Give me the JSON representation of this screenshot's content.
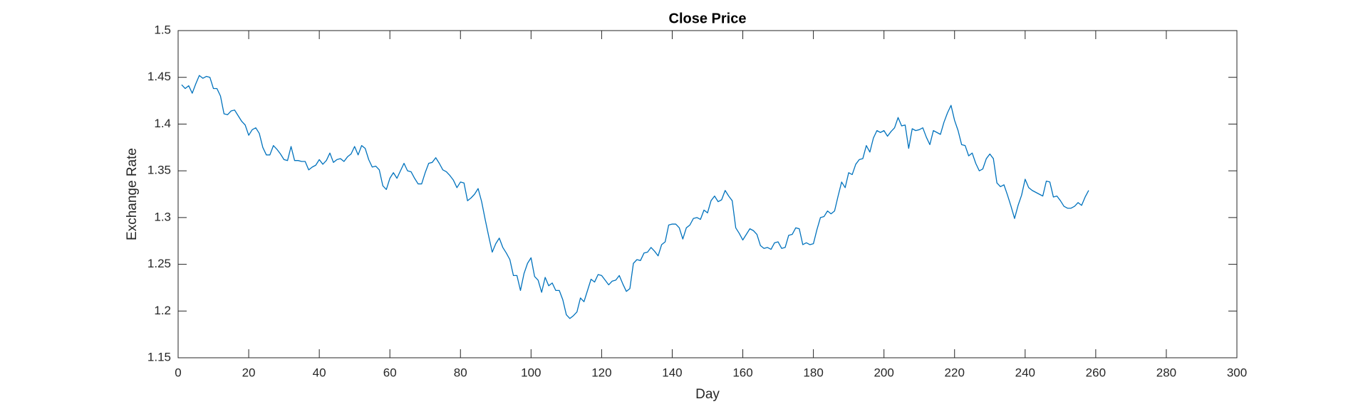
{
  "chart_data": {
    "type": "line",
    "title": "Close Price",
    "x_label": "Day",
    "y_label": "Exchange Rate",
    "x": [
      1,
      2,
      3,
      4,
      5,
      6,
      7,
      8,
      9,
      10,
      11,
      12,
      13,
      14,
      15,
      16,
      17,
      18,
      19,
      20,
      21,
      22,
      23,
      24,
      25,
      26,
      27,
      28,
      29,
      30,
      31,
      32,
      33,
      34,
      35,
      36,
      37,
      38,
      39,
      40,
      41,
      42,
      43,
      44,
      45,
      46,
      47,
      48,
      49,
      50,
      51,
      52,
      53,
      54,
      55,
      56,
      57,
      58,
      59,
      60,
      61,
      62,
      63,
      64,
      65,
      66,
      67,
      68,
      69,
      70,
      71,
      72,
      73,
      74,
      75,
      76,
      77,
      78,
      79,
      80,
      81,
      82,
      83,
      84,
      85,
      86,
      87,
      88,
      89,
      90,
      91,
      92,
      93,
      94,
      95,
      96,
      97,
      98,
      99,
      100,
      101,
      102,
      103,
      104,
      105,
      106,
      107,
      108,
      109,
      110,
      111,
      112,
      113,
      114,
      115,
      116,
      117,
      118,
      119,
      120,
      121,
      122,
      123,
      124,
      125,
      126,
      127,
      128,
      129,
      130,
      131,
      132,
      133,
      134,
      135,
      136,
      137,
      138,
      139,
      140,
      141,
      142,
      143,
      144,
      145,
      146,
      147,
      148,
      149,
      150,
      151,
      152,
      153,
      154,
      155,
      156,
      157,
      158,
      159,
      160,
      161,
      162,
      163,
      164,
      165,
      166,
      167,
      168,
      169,
      170,
      171,
      172,
      173,
      174,
      175,
      176,
      177,
      178,
      179,
      180,
      181,
      182,
      183,
      184,
      185,
      186,
      187,
      188,
      189,
      190,
      191,
      192,
      193,
      194,
      195,
      196,
      197,
      198,
      199,
      200,
      201,
      202,
      203,
      204,
      205,
      206,
      207,
      208,
      209,
      210,
      211,
      212,
      213,
      214,
      215,
      216,
      217,
      218,
      219,
      220,
      221,
      222,
      223,
      224,
      225,
      226,
      227,
      228,
      229,
      230,
      231,
      232,
      233,
      234,
      235,
      236,
      237,
      238,
      239,
      240,
      241,
      242,
      243,
      244,
      245,
      246,
      247,
      248,
      249,
      250,
      251,
      252,
      253,
      254,
      255,
      256,
      257,
      258
    ],
    "series": [
      {
        "name": "Close Price",
        "color": "#0072bd",
        "values": [
          1.442,
          1.438,
          1.441,
          1.433,
          1.443,
          1.452,
          1.449,
          1.451,
          1.45,
          1.438,
          1.438,
          1.43,
          1.411,
          1.41,
          1.414,
          1.415,
          1.409,
          1.403,
          1.399,
          1.388,
          1.394,
          1.396,
          1.39,
          1.375,
          1.367,
          1.367,
          1.377,
          1.373,
          1.368,
          1.362,
          1.361,
          1.376,
          1.361,
          1.361,
          1.36,
          1.36,
          1.351,
          1.354,
          1.356,
          1.362,
          1.357,
          1.361,
          1.369,
          1.359,
          1.362,
          1.363,
          1.36,
          1.365,
          1.368,
          1.376,
          1.367,
          1.377,
          1.374,
          1.362,
          1.354,
          1.355,
          1.351,
          1.334,
          1.33,
          1.342,
          1.348,
          1.342,
          1.35,
          1.358,
          1.35,
          1.349,
          1.342,
          1.336,
          1.336,
          1.348,
          1.358,
          1.359,
          1.364,
          1.358,
          1.351,
          1.349,
          1.345,
          1.34,
          1.332,
          1.338,
          1.337,
          1.318,
          1.321,
          1.325,
          1.331,
          1.317,
          1.298,
          1.28,
          1.263,
          1.272,
          1.278,
          1.268,
          1.262,
          1.255,
          1.238,
          1.238,
          1.222,
          1.24,
          1.251,
          1.257,
          1.237,
          1.233,
          1.22,
          1.236,
          1.227,
          1.23,
          1.222,
          1.222,
          1.212,
          1.196,
          1.192,
          1.195,
          1.199,
          1.214,
          1.21,
          1.222,
          1.234,
          1.231,
          1.239,
          1.238,
          1.233,
          1.228,
          1.232,
          1.233,
          1.238,
          1.229,
          1.221,
          1.224,
          1.251,
          1.255,
          1.254,
          1.262,
          1.263,
          1.268,
          1.264,
          1.259,
          1.271,
          1.274,
          1.292,
          1.293,
          1.293,
          1.289,
          1.277,
          1.289,
          1.292,
          1.299,
          1.3,
          1.298,
          1.308,
          1.305,
          1.318,
          1.323,
          1.317,
          1.319,
          1.329,
          1.323,
          1.318,
          1.289,
          1.283,
          1.276,
          1.282,
          1.288,
          1.286,
          1.282,
          1.27,
          1.267,
          1.268,
          1.266,
          1.273,
          1.274,
          1.267,
          1.268,
          1.281,
          1.282,
          1.289,
          1.288,
          1.271,
          1.273,
          1.271,
          1.272,
          1.287,
          1.3,
          1.301,
          1.307,
          1.304,
          1.307,
          1.323,
          1.338,
          1.332,
          1.348,
          1.346,
          1.357,
          1.362,
          1.363,
          1.377,
          1.37,
          1.385,
          1.393,
          1.391,
          1.393,
          1.387,
          1.392,
          1.396,
          1.407,
          1.398,
          1.399,
          1.374,
          1.395,
          1.393,
          1.394,
          1.396,
          1.386,
          1.378,
          1.393,
          1.391,
          1.389,
          1.402,
          1.412,
          1.42,
          1.404,
          1.393,
          1.378,
          1.377,
          1.366,
          1.369,
          1.358,
          1.35,
          1.352,
          1.363,
          1.368,
          1.363,
          1.337,
          1.333,
          1.335,
          1.324,
          1.312,
          1.299,
          1.313,
          1.324,
          1.341,
          1.332,
          1.329,
          1.327,
          1.325,
          1.323,
          1.339,
          1.338,
          1.322,
          1.323,
          1.318,
          1.312,
          1.31,
          1.31,
          1.312,
          1.316,
          1.313,
          1.322,
          1.329
        ]
      }
    ],
    "xlim": [
      0,
      300
    ],
    "xticks": [
      0,
      20,
      40,
      60,
      80,
      100,
      120,
      140,
      160,
      180,
      200,
      220,
      240,
      260,
      280,
      300
    ],
    "ylim": [
      1.15,
      1.5
    ],
    "yticks": [
      1.15,
      1.2,
      1.25,
      1.3,
      1.35,
      1.4,
      1.45,
      1.5
    ]
  }
}
